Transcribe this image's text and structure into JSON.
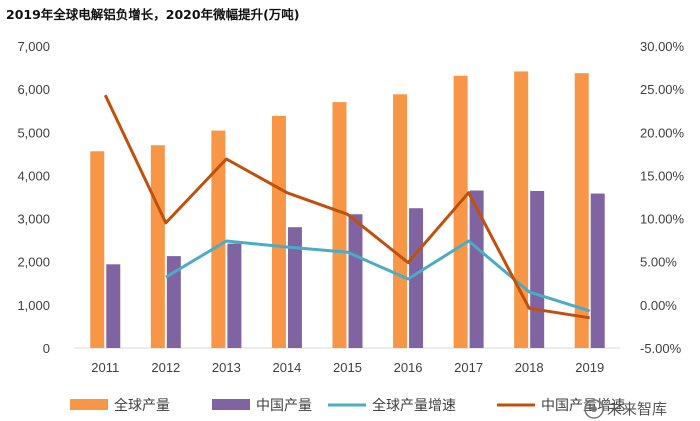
{
  "title": "2019年全球电解铝负增长，2020年微幅提升(万吨)",
  "watermark": "未来智库",
  "chart_data": {
    "type": "bar",
    "title": "2019年全球电解铝负增长，2020年微幅提升(万吨)",
    "categories": [
      "2011",
      "2012",
      "2013",
      "2014",
      "2015",
      "2016",
      "2017",
      "2018",
      "2019"
    ],
    "y_left": {
      "min": 0,
      "max": 7000,
      "step": 1000,
      "ticks": [
        "0",
        "1,000",
        "2,000",
        "3,000",
        "4,000",
        "5,000",
        "6,000",
        "7,000"
      ]
    },
    "y_right": {
      "min": -5,
      "max": 30,
      "step": 5,
      "ticks": [
        "-5.00%",
        "0.00%",
        "5.00%",
        "10.00%",
        "15.00%",
        "20.00%",
        "25.00%",
        "30.00%"
      ]
    },
    "series": [
      {
        "name": "全球产量",
        "kind": "bar",
        "axis": "left",
        "color": "#F79646",
        "values": [
          4560,
          4700,
          5040,
          5380,
          5700,
          5880,
          6310,
          6410,
          6370
        ]
      },
      {
        "name": "中国产量",
        "kind": "bar",
        "axis": "left",
        "color": "#8064A2",
        "values": [
          1940,
          2130,
          2420,
          2800,
          3100,
          3240,
          3650,
          3640,
          3580
        ]
      },
      {
        "name": "全球产量增速",
        "kind": "line",
        "axis": "right",
        "color": "#4BACC6",
        "values": [
          null,
          3.2,
          7.4,
          6.7,
          6.1,
          3.0,
          7.4,
          1.5,
          -0.7
        ]
      },
      {
        "name": "中国产量增速",
        "kind": "line",
        "axis": "right",
        "color": "#C0500B",
        "values": [
          24.3,
          9.5,
          16.9,
          13.0,
          10.5,
          4.9,
          13.0,
          -0.4,
          -1.5
        ]
      }
    ],
    "legend_position": "bottom",
    "grid": false
  }
}
